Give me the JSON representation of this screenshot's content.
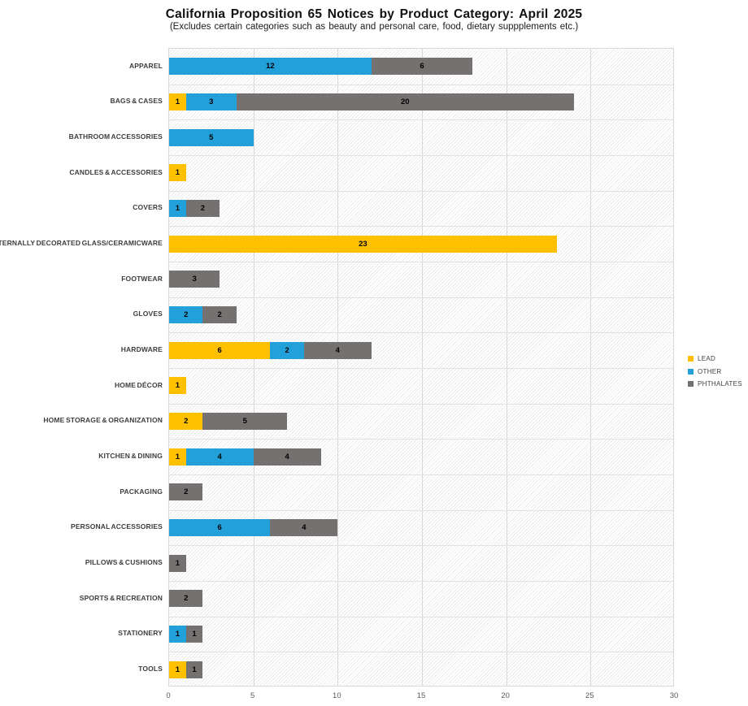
{
  "page": {
    "title": "California Proposition 65 Notices by Product Category: April 2025",
    "subtitle": "(Excludes certain categories such as beauty and personal care, food, dietary suppplements etc.)"
  },
  "chart_data": {
    "type": "bar",
    "orientation": "horizontal",
    "stacked": true,
    "title": "California Proposition 65 Notices by Product Category: April 2025",
    "subtitle": "(Excludes certain categories such as beauty and personal care, food, dietary suppplements etc.)",
    "categories": [
      "APPAREL",
      "BAGS & CASES",
      "BATHROOM ACCESSORIES",
      "CANDLES & ACCESSORIES",
      "COVERS",
      "EXTERNALLY DECORATED GLASS/CERAMICWARE",
      "FOOTWEAR",
      "GLOVES",
      "HARDWARE",
      "HOME DÉCOR",
      "HOME STORAGE & ORGANIZATION",
      "KITCHEN & DINING",
      "PACKAGING",
      "PERSONAL ACCESSORIES",
      "PILLOWS & CUSHIONS",
      "SPORTS & RECREATION",
      "STATIONERY",
      "TOOLS"
    ],
    "series": [
      {
        "name": "LEAD",
        "color": "#FFC000",
        "values": [
          0,
          1,
          0,
          1,
          0,
          23,
          0,
          0,
          6,
          1,
          2,
          1,
          0,
          0,
          0,
          0,
          0,
          1
        ]
      },
      {
        "name": "OTHER",
        "color": "#22A0DA",
        "values": [
          12,
          3,
          5,
          0,
          1,
          0,
          0,
          2,
          2,
          0,
          0,
          4,
          0,
          6,
          0,
          0,
          1,
          0
        ]
      },
      {
        "name": "PHTHALATES",
        "color": "#767171",
        "values": [
          6,
          20,
          0,
          0,
          2,
          0,
          3,
          2,
          4,
          0,
          5,
          4,
          2,
          4,
          1,
          2,
          1,
          1
        ]
      }
    ],
    "xlim": [
      0,
      30
    ],
    "xticks": [
      0,
      5,
      10,
      15,
      20,
      25,
      30
    ],
    "grid": true,
    "legend_position": "right",
    "value_labels": "inside-center",
    "plot_background_pattern": "light-diagonal-hatch"
  },
  "colors": {
    "lead": "#FFC000",
    "other": "#22A0DA",
    "phthalates": "#767171",
    "gridline": "#d9d9d9",
    "row_separator": "#e2e2e2",
    "tick_text": "#595959",
    "category_text": "#3d3d3d",
    "value_text": "#000000"
  }
}
